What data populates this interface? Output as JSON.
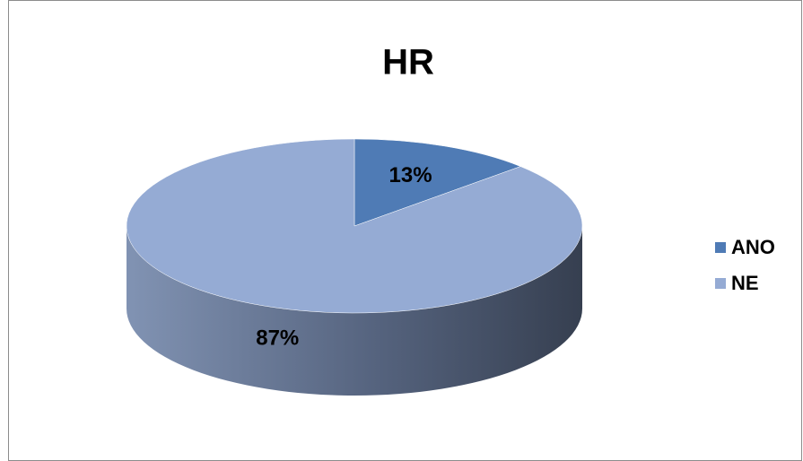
{
  "chart_data": {
    "type": "pie",
    "title": "HR",
    "categories": [
      "ANO",
      "NE"
    ],
    "values": [
      13,
      87
    ],
    "value_labels": [
      "13%",
      "87%"
    ],
    "colors": [
      "#4f7bb5",
      "#95abd4"
    ],
    "legend": "right"
  }
}
